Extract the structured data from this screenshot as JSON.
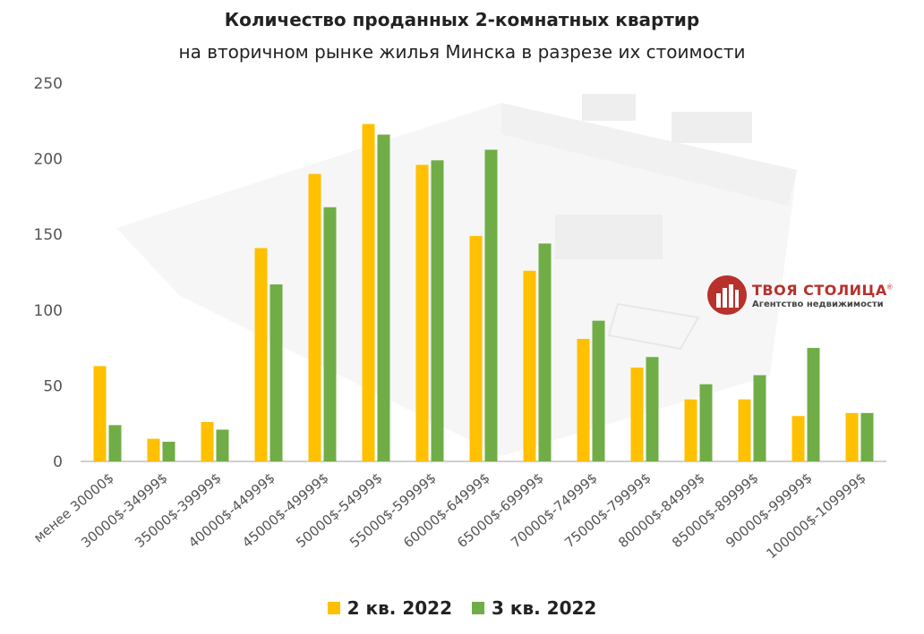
{
  "chart_data": {
    "type": "bar",
    "title": "Количество проданных 2-комнатных квартир",
    "subtitle": "на вторичном рынке жилья Минска в разрезе их стоимости",
    "xlabel": "",
    "ylabel": "",
    "ylim": [
      0,
      250
    ],
    "yticks": [
      0,
      50,
      100,
      150,
      200,
      250
    ],
    "grid": false,
    "legend_position": "bottom",
    "categories": [
      "менее 30000$",
      "30000$-34999$",
      "35000$-39999$",
      "40000$-44999$",
      "45000$-49999$",
      "50000$-54999$",
      "55000$-59999$",
      "60000$-64999$",
      "65000$-69999$",
      "70000$-74999$",
      "75000$-79999$",
      "80000$-84999$",
      "85000$-89999$",
      "90000$-99999$",
      "100000$-109999$"
    ],
    "series": [
      {
        "name": "2 кв. 2022",
        "color": "#FFC000",
        "values": [
          63,
          15,
          26,
          141,
          190,
          223,
          196,
          149,
          126,
          81,
          62,
          41,
          41,
          30,
          32
        ]
      },
      {
        "name": "3 кв. 2022",
        "color": "#70AD47",
        "values": [
          24,
          13,
          21,
          117,
          168,
          216,
          199,
          206,
          144,
          93,
          69,
          51,
          57,
          75,
          32
        ]
      }
    ]
  },
  "logo": {
    "name": "ТВОЯ СТОЛИЦА",
    "mark": "®",
    "tagline": "Агентство недвижимости",
    "color": "#B8312B"
  }
}
